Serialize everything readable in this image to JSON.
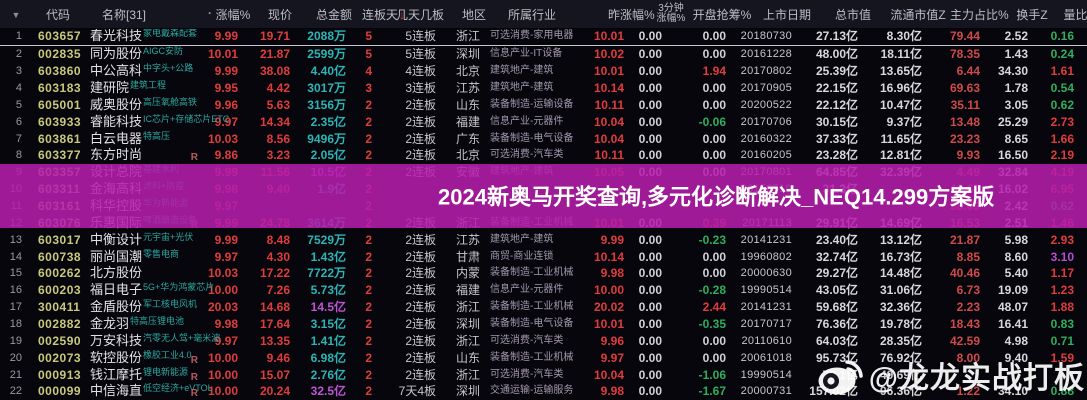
{
  "selected_row": 1,
  "colors": {
    "up": "#e03c3c",
    "down": "#2fae5e",
    "amount_cyan": "#2db4b4",
    "amount_magenta": "#bf54d4",
    "ratio_purple": "#b44fd2",
    "code": "#c9c97c",
    "banner_bg": "#b61eac"
  },
  "header": {
    "cols": [
      "",
      "代码",
      "名称[31]",
      "涨幅%",
      "现价",
      "总金额",
      "连板天",
      "几天几板",
      "地区",
      "所属行业",
      "昨涨幅%",
      "3分钟|涨幅%",
      "开盘抢筹%",
      "上市日期",
      "总市值",
      "流通市值Z",
      "主力占比%",
      "换手Z",
      "量比"
    ],
    "icons": {
      "filter": "▼",
      "sort_desc": "↓",
      "help": "?",
      "name_dot": "·"
    }
  },
  "banner": {
    "text": "2024新奥马开奖查询,多元化诊断解决_NEQ14.299方案版"
  },
  "watermark": {
    "text": "@龙龙实战打板"
  },
  "rows": [
    {
      "seq": "1",
      "code": "603657",
      "name": "春光科技",
      "tag": "家电戴森配套",
      "r": "",
      "chg": "9.99",
      "price": "19.71",
      "amt": "2088万",
      "ac": "c",
      "lb": "5",
      "days": "5连板",
      "reg": "浙江",
      "ind": "可选消费-家用电器",
      "ychg": "10.01",
      "m3": "0.00",
      "open": "0.00",
      "date": "20180730",
      "cap": "27.13亿",
      "fcap": "8.30亿",
      "main": "79.44",
      "turn": "2.52",
      "ratio": "0.16",
      "rc": "g"
    },
    {
      "seq": "2",
      "code": "002835",
      "name": "同为股份",
      "tag": "AIGC安防",
      "r": "",
      "chg": "10.01",
      "price": "21.87",
      "amt": "2599万",
      "ac": "c",
      "lb": "5",
      "days": "5连板",
      "reg": "深圳",
      "ind": "信息产业-IT设备",
      "ychg": "10.02",
      "m3": "0.00",
      "open": "0.00",
      "date": "20161228",
      "cap": "48.00亿",
      "fcap": "18.11亿",
      "main": "78.35",
      "turn": "1.43",
      "ratio": "0.24",
      "rc": "g"
    },
    {
      "seq": "3",
      "code": "603860",
      "name": "中公高科",
      "tag": "中字头+公路",
      "r": "",
      "chg": "9.99",
      "price": "38.08",
      "amt": "4.40亿",
      "ac": "c",
      "lb": "4",
      "days": "4连板",
      "reg": "北京",
      "ind": "建筑地产-建筑",
      "ychg": "10.01",
      "m3": "0.00",
      "open": "1.94",
      "date": "20170802",
      "cap": "25.39亿",
      "fcap": "13.65亿",
      "main": "6.44",
      "turn": "34.30",
      "ratio": "1.61",
      "rc": "r"
    },
    {
      "seq": "4",
      "code": "603183",
      "name": "建研院",
      "tag": "建筑工程",
      "r": "",
      "chg": "9.95",
      "price": "4.42",
      "amt": "3017万",
      "ac": "c",
      "lb": "3",
      "days": "3连板",
      "reg": "江苏",
      "ind": "建筑地产-建筑",
      "ychg": "10.14",
      "m3": "0.00",
      "open": "0.00",
      "date": "20170905",
      "cap": "22.15亿",
      "fcap": "16.96亿",
      "main": "69.63",
      "turn": "1.78",
      "ratio": "0.54",
      "rc": "g"
    },
    {
      "seq": "5",
      "code": "605001",
      "name": "威奥股份",
      "tag": "高压氧舱高铁",
      "r": "",
      "chg": "9.96",
      "price": "5.63",
      "amt": "3156万",
      "ac": "c",
      "lb": "2",
      "days": "2连板",
      "reg": "山东",
      "ind": "装备制造-运输设备",
      "ychg": "10.11",
      "m3": "0.00",
      "open": "0.00",
      "date": "20200522",
      "cap": "22.12亿",
      "fcap": "10.47亿",
      "main": "35.11",
      "turn": "3.05",
      "ratio": "0.62",
      "rc": "g"
    },
    {
      "seq": "6",
      "code": "603933",
      "name": "睿能科技",
      "tag": "IC芯片+存储芯片ETC",
      "r": "",
      "chg": "9.97",
      "price": "14.34",
      "amt": "2.35亿",
      "ac": "c",
      "lb": "2",
      "days": "2连板",
      "reg": "福建",
      "ind": "信息产业-元器件",
      "ychg": "10.04",
      "m3": "0.00",
      "open": "-0.06",
      "date": "20170706",
      "cap": "30.15亿",
      "fcap": "9.37亿",
      "main": "13.48",
      "turn": "25.29",
      "ratio": "2.73",
      "rc": "r"
    },
    {
      "seq": "7",
      "code": "603861",
      "name": "白云电器",
      "tag": "特高压",
      "r": "",
      "chg": "10.03",
      "price": "8.56",
      "amt": "9496万",
      "ac": "c",
      "lb": "2",
      "days": "2连板",
      "reg": "广东",
      "ind": "装备制造-电气设备",
      "ychg": "10.04",
      "m3": "0.00",
      "open": "0.00",
      "date": "20160322",
      "cap": "37.33亿",
      "fcap": "11.65亿",
      "main": "23.23",
      "turn": "8.65",
      "ratio": "1.66",
      "rc": "r"
    },
    {
      "seq": "8",
      "code": "603377",
      "name": "东方时尚",
      "tag": "",
      "r": "R",
      "chg": "9.86",
      "price": "3.23",
      "amt": "2.05亿",
      "ac": "c",
      "lb": "2",
      "days": "2连板",
      "reg": "北京",
      "ind": "可选消费-汽车类",
      "ychg": "10.11",
      "m3": "0.00",
      "open": "0.00",
      "date": "20160205",
      "cap": "23.28亿",
      "fcap": "12.81亿",
      "main": "9.93",
      "turn": "16.50",
      "ratio": "2.19",
      "rc": "r"
    },
    {
      "seq": "9",
      "code": "603357",
      "name": "设计总院",
      "tag": "基建水利",
      "r": "",
      "chg": "9.99",
      "price": "11.56",
      "amt": "10.5亿",
      "ac": "m",
      "lb": "2",
      "days": "2连板",
      "reg": "安徽",
      "ind": "建筑地产-建筑",
      "ychg": "10.05",
      "m3": "0.00",
      "open": "0.00",
      "date": "20170801",
      "cap": "64.85亿",
      "fcap": "32.39亿",
      "main": "4.49",
      "turn": "32.84",
      "ratio": "4.19",
      "rc": "r"
    },
    {
      "seq": "10",
      "code": "603311",
      "name": "金海高科",
      "tag": "滤料+防疫",
      "r": "",
      "chg": "9.98",
      "price": "9.40",
      "amt": "1.9亿",
      "ac": "c",
      "lb": "2",
      "days": "",
      "reg": "",
      "ind": "",
      "ychg": "",
      "m3": "",
      "open": "",
      "date": "20150519",
      "cap": "31.3亿",
      "fcap": "",
      "main": "11.63",
      "turn": "16.02",
      "ratio": "6.95",
      "rc": "r"
    },
    {
      "seq": "11",
      "code": "603161",
      "name": "科华控股",
      "tag": "华为新能源",
      "r": "",
      "chg": "9.97",
      "price": "",
      "amt": "",
      "ac": "c",
      "lb": "2",
      "days": "",
      "reg": "",
      "ind": "",
      "ychg": "",
      "m3": "",
      "open": "",
      "date": "",
      "cap": "",
      "fcap": "",
      "main": "38.69",
      "turn": "2.42",
      "ratio": "0.62",
      "rc": "g"
    },
    {
      "seq": "12",
      "code": "603076",
      "name": "乐惠国际",
      "tag": "啤酒酿造设备",
      "r": "R",
      "chg": "9.99",
      "price": "24.78",
      "amt": "3614万",
      "ac": "c",
      "lb": "2",
      "days": "2连板",
      "reg": "浙江",
      "ind": "装备制造-工业机械",
      "ychg": "10.01",
      "m3": "0.00",
      "open": "0.39",
      "date": "20171113",
      "cap": "29.91亿",
      "fcap": "14.69亿",
      "main": "16.53",
      "turn": "2.51",
      "ratio": "1.46",
      "rc": "r"
    },
    {
      "seq": "13",
      "code": "603017",
      "name": "中衡设计",
      "tag": "元宇宙+光伏",
      "r": "",
      "chg": "9.99",
      "price": "8.48",
      "amt": "7529万",
      "ac": "c",
      "lb": "2",
      "days": "2连板",
      "reg": "江苏",
      "ind": "建筑地产-建筑",
      "ychg": "9.99",
      "m3": "0.00",
      "open": "-0.23",
      "date": "20141231",
      "cap": "23.40亿",
      "fcap": "13.12亿",
      "main": "21.87",
      "turn": "5.98",
      "ratio": "2.93",
      "rc": "r"
    },
    {
      "seq": "14",
      "code": "600738",
      "name": "丽尚国潮",
      "tag": "零售电商",
      "r": "",
      "chg": "9.97",
      "price": "4.30",
      "amt": "1.43亿",
      "ac": "c",
      "lb": "2",
      "days": "2连板",
      "reg": "甘肃",
      "ind": "商贸-商业连锁",
      "ychg": "10.14",
      "m3": "0.00",
      "open": "0.00",
      "date": "19960802",
      "cap": "32.74亿",
      "fcap": "16.73亿",
      "main": "8.85",
      "turn": "8.60",
      "ratio": "3.10",
      "rc": "p"
    },
    {
      "seq": "15",
      "code": "600262",
      "name": "北方股份",
      "tag": "",
      "r": "",
      "chg": "10.03",
      "price": "17.22",
      "amt": "7722万",
      "ac": "c",
      "lb": "2",
      "days": "2连板",
      "reg": "内蒙",
      "ind": "装备制造-工业机械",
      "ychg": "9.98",
      "m3": "0.00",
      "open": "0.00",
      "date": "20000630",
      "cap": "29.27亿",
      "fcap": "14.48亿",
      "main": "40.46",
      "turn": "5.40",
      "ratio": "1.17",
      "rc": "r"
    },
    {
      "seq": "16",
      "code": "600203",
      "name": "福日电子",
      "tag": "5G+华为鸿蒙芯片",
      "r": "",
      "chg": "10.00",
      "price": "7.26",
      "amt": "5.73亿",
      "ac": "c",
      "lb": "2",
      "days": "2连板",
      "reg": "福建",
      "ind": "信息产业-元器件",
      "ychg": "10.00",
      "m3": "0.00",
      "open": "-0.28",
      "date": "19990514",
      "cap": "43.05亿",
      "fcap": "31.06亿",
      "main": "6.73",
      "turn": "19.09",
      "ratio": "1.23",
      "rc": "r"
    },
    {
      "seq": "17",
      "code": "300411",
      "name": "金盾股份",
      "tag": "军工核电风机",
      "r": "",
      "chg": "20.03",
      "price": "14.68",
      "amt": "14.5亿",
      "ac": "m",
      "lb": "2",
      "days": "2连板",
      "reg": "浙江",
      "ind": "装备制造-工业机械",
      "ychg": "20.02",
      "m3": "0.00",
      "open": "2.44",
      "date": "20141231",
      "cap": "59.68亿",
      "fcap": "32.36亿",
      "main": "2.23",
      "turn": "48.07",
      "ratio": "1.88",
      "rc": "r"
    },
    {
      "seq": "18",
      "code": "002882",
      "name": "金龙羽",
      "tag": "特高压锂电池",
      "r": "",
      "chg": "9.98",
      "price": "17.64",
      "amt": "3.15亿",
      "ac": "c",
      "lb": "2",
      "days": "2连板",
      "reg": "深圳",
      "ind": "装备制造-电气设备",
      "ychg": "10.01",
      "m3": "0.00",
      "open": "-0.35",
      "date": "20170717",
      "cap": "76.36亿",
      "fcap": "19.78亿",
      "main": "18.43",
      "turn": "16.41",
      "ratio": "0.83",
      "rc": "g"
    },
    {
      "seq": "19",
      "code": "002590",
      "name": "万安科技",
      "tag": "汽零无人驾+毫米波",
      "r": "",
      "chg": "9.97",
      "price": "13.35",
      "amt": "1.41亿",
      "ac": "c",
      "lb": "2",
      "days": "2连板",
      "reg": "浙江",
      "ind": "可选消费-汽车类",
      "ychg": "9.96",
      "m3": "0.00",
      "open": "0.00",
      "date": "20110610",
      "cap": "64.03亿",
      "fcap": "28.35亿",
      "main": "42.59",
      "turn": "4.98",
      "ratio": "0.71",
      "rc": "g"
    },
    {
      "seq": "20",
      "code": "002073",
      "name": "软控股份",
      "tag": "橡胶工业4.0",
      "r": "R",
      "chg": "10.00",
      "price": "9.46",
      "amt": "6.98亿",
      "ac": "c",
      "lb": "2",
      "days": "2连板",
      "reg": "山东",
      "ind": "装备制造-工业机械",
      "ychg": "9.97",
      "m3": "0.00",
      "open": "0.00",
      "date": "20061018",
      "cap": "95.73亿",
      "fcap": "76.92亿",
      "main": "8.00",
      "turn": "9.40",
      "ratio": "1.59",
      "rc": "r"
    },
    {
      "seq": "21",
      "code": "000913",
      "name": "钱江摩托",
      "tag": "锂电新能源",
      "r": "R",
      "chg": "10.00",
      "price": "15.07",
      "amt": "2.76亿",
      "ac": "c",
      "lb": "2",
      "days": "2连板",
      "reg": "浙江",
      "ind": "可选消费-汽车类",
      "ychg": "10.04",
      "m3": "0.00",
      "open": "-1.06",
      "date": "19990514",
      "cap": "79.1亿",
      "fcap": "49.69亿",
      "main": "",
      "turn": "",
      "ratio": "",
      "rc": "r"
    },
    {
      "seq": "22",
      "code": "000099",
      "name": "中信海直",
      "tag": "低空经济+eVTOL",
      "r": "R",
      "chg": "10.00",
      "price": "20.24",
      "amt": "32.5亿",
      "ac": "m",
      "lb": "2",
      "days": "7天4板",
      "reg": "深圳",
      "ind": "交通运输-运输服务",
      "ychg": "9.98",
      "m3": "0.00",
      "open": "-1.67",
      "date": "20000731",
      "cap": "157.02亿",
      "fcap": "96.36亿",
      "main": "1.22",
      "turn": "34.10",
      "ratio": "0.88",
      "rc": "g"
    }
  ]
}
